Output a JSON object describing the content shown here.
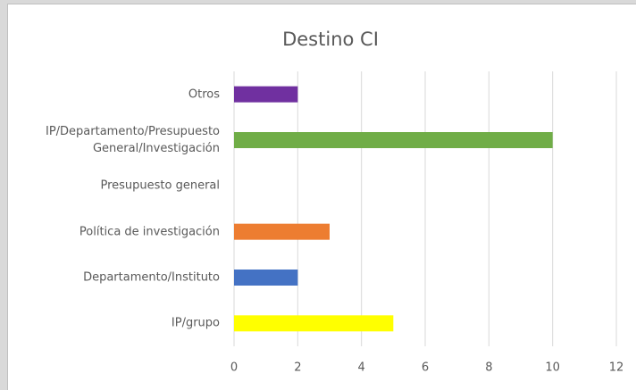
{
  "chart_data": {
    "type": "hbar",
    "title": "Destino CI",
    "categories": [
      "Otros",
      "IP/Departamento/Presupuesto General/Investigación",
      "Presupuesto general",
      "Política de investigación",
      "Departamento/Instituto",
      "IP/grupo"
    ],
    "values": [
      2,
      10,
      0,
      3,
      2,
      5
    ],
    "colors": [
      "#7030a0",
      "#70ad47",
      "#a5a5a5",
      "#ed7d31",
      "#4472c4",
      "#ffff00"
    ],
    "xlim": [
      0,
      12
    ],
    "xticks": [
      0,
      2,
      4,
      6,
      8,
      10,
      12
    ],
    "grid": true
  }
}
